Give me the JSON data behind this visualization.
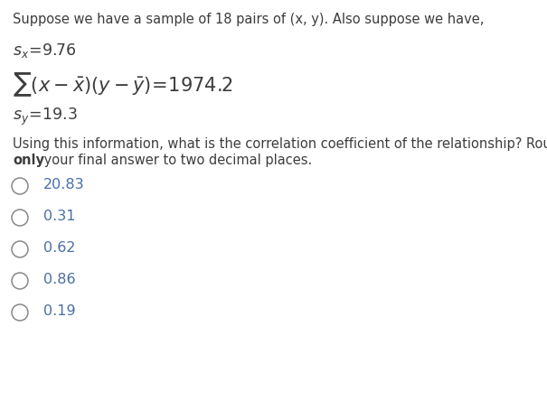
{
  "background_color": "#ffffff",
  "intro_text": "Suppose we have a sample of 18 pairs of (x, y). Also suppose we have,",
  "question_text_line1": "Using this information, what is the correlation coefficient of the relationship? Round",
  "question_text_line2_bold": "only",
  "question_text_line2_rest": " your final answer to two decimal places.",
  "choices": [
    "20.83",
    "0.31",
    "0.62",
    "0.86",
    "0.19"
  ],
  "text_color": "#3d3d3d",
  "choice_color": "#4a6fa5",
  "circle_color": "#888888",
  "bold_color": "#3d3d3d",
  "font_size_intro": 10.5,
  "font_size_math_small": 12.5,
  "font_size_math_sum": 15,
  "font_size_question": 10.5,
  "font_size_choices": 11.5,
  "fig_width": 6.05,
  "fig_height": 4.44,
  "dpi": 100
}
